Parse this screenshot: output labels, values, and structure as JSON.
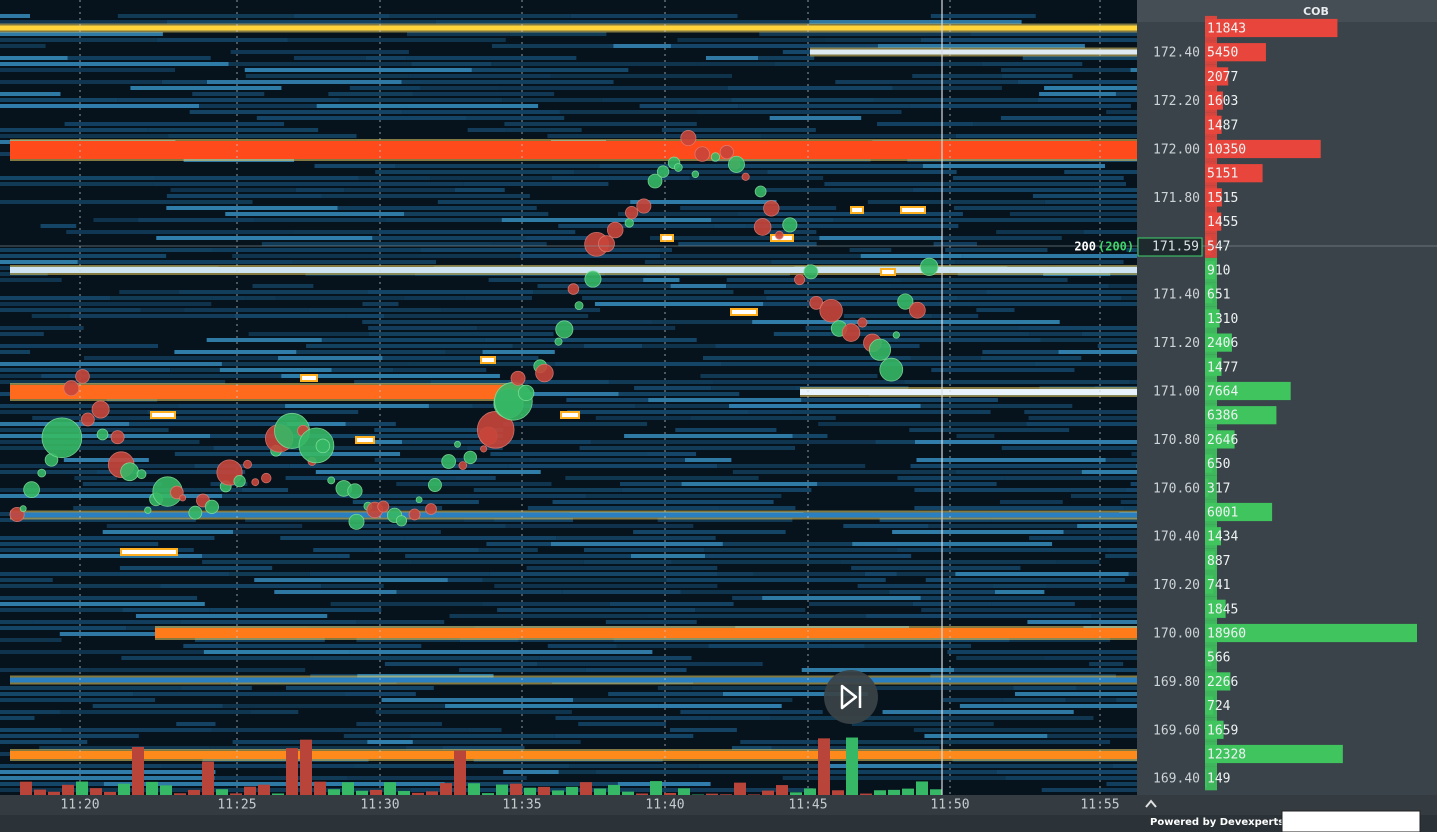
{
  "header": {
    "title": "COB"
  },
  "time_axis": {
    "labels": [
      "11:20",
      "11:25",
      "11:30",
      "11:35",
      "11:40",
      "11:45",
      "11:50",
      "11:55"
    ]
  },
  "current": {
    "size": "200",
    "size_total": "(200)",
    "price": "171.59"
  },
  "cob": {
    "asks": [
      {
        "volume": 11843
      },
      {
        "price": "172.40",
        "volume": 5450
      },
      {
        "volume": 2077
      },
      {
        "price": "172.20",
        "volume": 1603
      },
      {
        "volume": 1487
      },
      {
        "price": "172.00",
        "volume": 10350
      },
      {
        "volume": 5151
      },
      {
        "price": "171.80",
        "volume": 1515
      },
      {
        "volume": 1455
      },
      {
        "volume": 547
      }
    ],
    "bids": [
      {
        "volume": 910
      },
      {
        "price": "171.40",
        "volume": 651
      },
      {
        "volume": 1310
      },
      {
        "price": "171.20",
        "volume": 2406
      },
      {
        "volume": 1477
      },
      {
        "price": "171.00",
        "volume": 7664
      },
      {
        "volume": 6386
      },
      {
        "price": "170.80",
        "volume": 2646
      },
      {
        "volume": 650
      },
      {
        "price": "170.60",
        "volume": 317
      },
      {
        "volume": 6001
      },
      {
        "price": "170.40",
        "volume": 1434
      },
      {
        "volume": 887
      },
      {
        "price": "170.20",
        "volume": 741
      },
      {
        "volume": 1845
      },
      {
        "price": "170.00",
        "volume": 18960
      },
      {
        "volume": 566
      },
      {
        "price": "169.80",
        "volume": 2266
      },
      {
        "volume": 724
      },
      {
        "price": "169.60",
        "volume": 1659
      },
      {
        "volume": 12328
      },
      {
        "price": "169.40",
        "volume": 149
      }
    ]
  },
  "footer": {
    "text": "Powered by Devexperts"
  }
}
